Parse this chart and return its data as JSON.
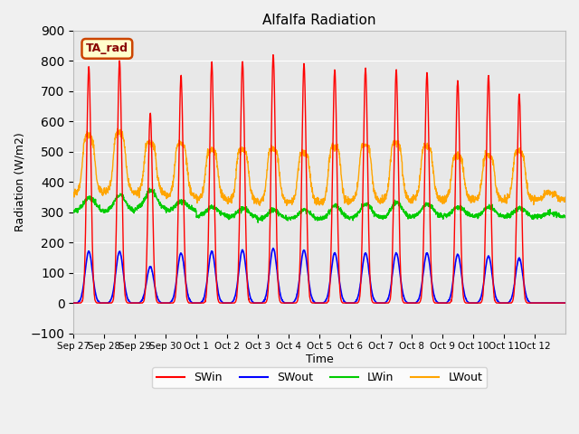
{
  "title": "Alfalfa Radiation",
  "xlabel": "Time",
  "ylabel": "Radiation (W/m2)",
  "ylim": [
    -100,
    900
  ],
  "yticks": [
    -100,
    0,
    100,
    200,
    300,
    400,
    500,
    600,
    700,
    800,
    900
  ],
  "fig_bg_color": "#f0f0f0",
  "plot_bg_color": "#e8e8e8",
  "line_colors": {
    "SWin": "#ff0000",
    "SWout": "#0000ff",
    "LWin": "#00cc00",
    "LWout": "#ffa500"
  },
  "annotation_text": "TA_rad",
  "annotation_bg": "#ffffcc",
  "annotation_border": "#cc4400",
  "n_days": 16,
  "n_per_day": 144,
  "day_labels": [
    "Sep 27",
    "Sep 28",
    "Sep 29",
    "Sep 30",
    "Oct 1",
    "Oct 2",
    "Oct 3",
    "Oct 4",
    "Oct 5",
    "Oct 6",
    "Oct 7",
    "Oct 8",
    "Oct 9",
    "Oct 10",
    "Oct 11",
    "Oct 12"
  ],
  "SWin_peaks": [
    780,
    800,
    630,
    750,
    795,
    800,
    820,
    790,
    770,
    775,
    770,
    760,
    735,
    750,
    690,
    0
  ],
  "SWout_peaks": [
    170,
    170,
    120,
    165,
    170,
    175,
    180,
    175,
    165,
    165,
    165,
    165,
    160,
    155,
    148,
    0
  ],
  "LWin_base": [
    303,
    302,
    312,
    306,
    287,
    282,
    277,
    277,
    277,
    282,
    282,
    287,
    287,
    285,
    285,
    285
  ],
  "LWin_peaks": [
    348,
    358,
    373,
    338,
    318,
    313,
    308,
    308,
    323,
    328,
    333,
    328,
    318,
    318,
    313,
    298
  ],
  "LWout_base": [
    362,
    367,
    362,
    352,
    342,
    337,
    332,
    332,
    332,
    337,
    337,
    342,
    342,
    342,
    342,
    342
  ],
  "LWout_peaks": [
    550,
    558,
    525,
    522,
    503,
    503,
    503,
    493,
    513,
    518,
    523,
    513,
    483,
    483,
    498,
    363
  ]
}
